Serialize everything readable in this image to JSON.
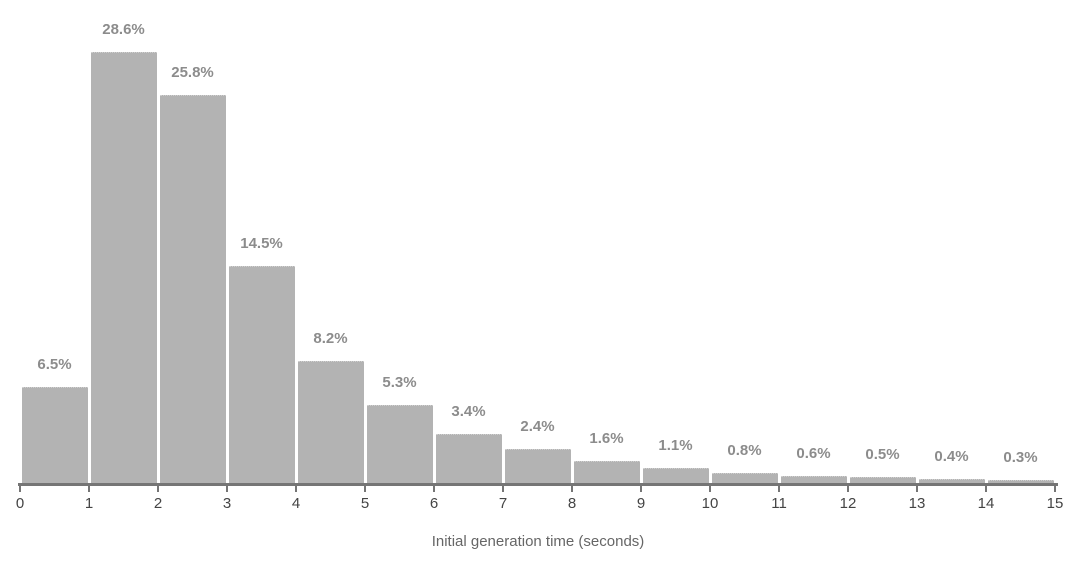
{
  "chart_data": {
    "type": "bar",
    "title": "",
    "subtitle": "",
    "xlabel": "Initial generation time (seconds)",
    "ylabel": "",
    "categories": [
      "0-1",
      "1-2",
      "2-3",
      "3-4",
      "4-5",
      "5-6",
      "6-7",
      "7-8",
      "8-9",
      "9-10",
      "10-11",
      "11-12",
      "12-13",
      "13-14",
      "14-15"
    ],
    "values": [
      6.5,
      28.6,
      25.8,
      14.5,
      8.2,
      5.3,
      3.4,
      2.4,
      1.6,
      1.1,
      0.8,
      0.6,
      0.5,
      0.4,
      0.3
    ],
    "value_labels": [
      "6.5%",
      "28.6%",
      "25.8%",
      "14.5%",
      "8.2%",
      "5.3%",
      "3.4%",
      "2.4%",
      "1.6%",
      "1.1%",
      "0.8%",
      "0.6%",
      "0.5%",
      "0.4%",
      "0.3%"
    ],
    "x_ticks": [
      "0",
      "1",
      "2",
      "3",
      "4",
      "5",
      "6",
      "7",
      "8",
      "9",
      "10",
      "11",
      "12",
      "13",
      "14",
      "15"
    ],
    "xlim": [
      0,
      15
    ],
    "ylim": [
      0,
      30
    ],
    "grid": "off",
    "legend": "none",
    "bar_color": "#b3b3b3",
    "bar_top_edge_color": "#cfcfcf",
    "value_label_color": "#8c8c8c",
    "axis_line_color": "#757575",
    "tick_label_color": "#444444",
    "axis_title_color": "#666666"
  }
}
